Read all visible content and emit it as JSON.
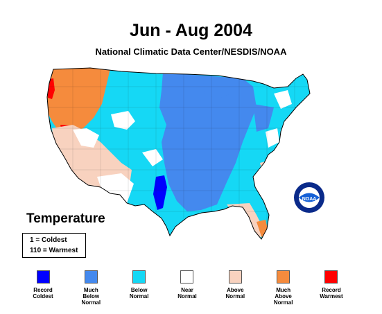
{
  "title": "Jun - Aug 2004",
  "subtitle": "National Climatic Data Center/NESDIS/NOAA",
  "logo_text": "NOAA",
  "heading": "Temperature",
  "scale": {
    "coldest": "1 = Coldest",
    "warmest": "110 = Warmest"
  },
  "legend": [
    {
      "label": "Record\nColdest",
      "color": "#0000ff"
    },
    {
      "label": "Much\nBelow\nNormal",
      "color": "#4489ee"
    },
    {
      "label": "Below\nNormal",
      "color": "#15d8f5"
    },
    {
      "label": "Near\nNormal",
      "color": "#ffffff"
    },
    {
      "label": "Above\nNormal",
      "color": "#f8d2bf"
    },
    {
      "label": "Much\nAbove\nNormal",
      "color": "#f58b3d"
    },
    {
      "label": "Record\nWarmest",
      "color": "#ff0000"
    }
  ]
}
